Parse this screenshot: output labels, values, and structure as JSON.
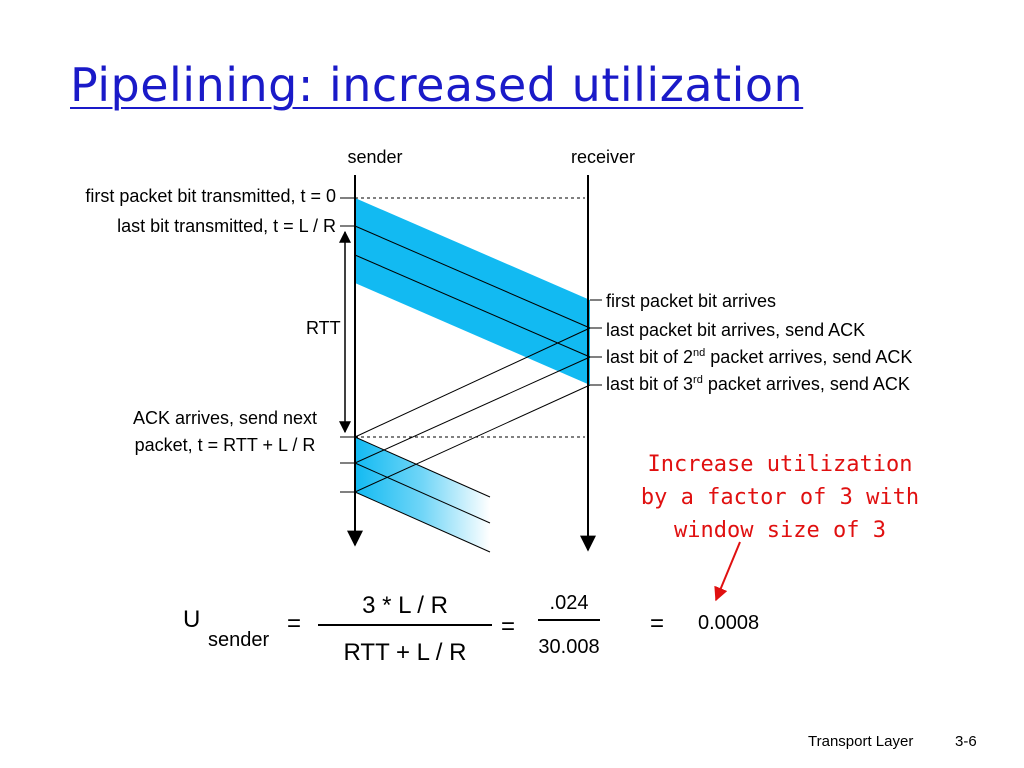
{
  "title": "Pipelining: increased utilization",
  "diagram": {
    "sender": "sender",
    "receiver": "receiver",
    "left_labels": {
      "first_bit": "first packet bit transmitted, t = 0",
      "last_bit": "last bit transmitted, t = L / R",
      "rtt": "RTT",
      "ack_line1": "ACK arrives, send next",
      "ack_line2": "packet, t = RTT + L / R"
    },
    "right_labels": {
      "arrives": "first packet bit arrives",
      "last_arrives": "last packet bit arrives, send ACK",
      "second_pre": "last bit of 2",
      "second_sup": "nd",
      "second_post": " packet arrives, send ACK",
      "third_pre": "last bit of 3",
      "third_sup": "rd",
      "third_post": " packet arrives, send ACK"
    },
    "colors": {
      "packet": "#12baf2",
      "note": "#e01010",
      "title": "#1a1ac8"
    }
  },
  "note": {
    "line1": "Increase utilization",
    "line2": "by a factor of 3 with",
    "line3": "window size of 3"
  },
  "formula": {
    "u": "U",
    "u_sub": "sender",
    "eq1": "=",
    "num1": "3 * L / R",
    "den1": "RTT + L / R",
    "eq2": "=",
    "num2": ".024",
    "den2": "30.008",
    "eq3": "=",
    "result": "0.0008"
  },
  "footer": {
    "section": "Transport Layer",
    "page": "3-6"
  }
}
